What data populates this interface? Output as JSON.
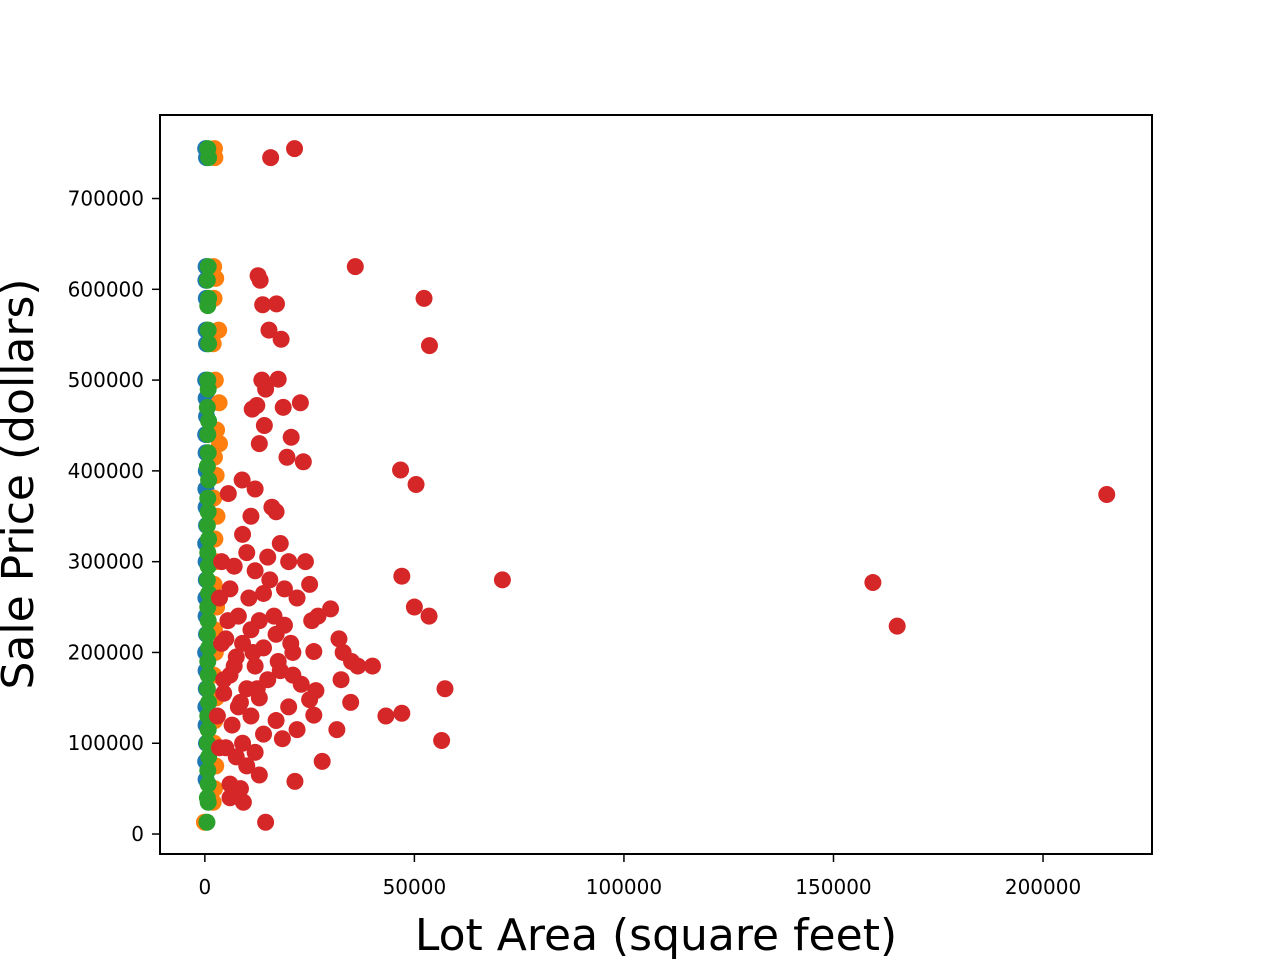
{
  "chart_data": {
    "type": "scatter",
    "title": "",
    "xlabel": "Lot Area (square feet)",
    "ylabel": "Sale Price (dollars)",
    "xlim": [
      -10700,
      226000
    ],
    "ylim": [
      -22000,
      792000
    ],
    "x_ticks": [
      0,
      50000,
      100000,
      150000,
      200000
    ],
    "y_ticks": [
      0,
      100000,
      200000,
      300000,
      400000,
      500000,
      600000,
      700000
    ],
    "grid": false,
    "legend": "none",
    "series": [
      {
        "color": "#1f77b4",
        "points": [
          [
            200,
            755000
          ],
          [
            400,
            745000
          ],
          [
            300,
            625000
          ],
          [
            250,
            610000
          ],
          [
            350,
            590000
          ],
          [
            300,
            555000
          ],
          [
            400,
            540000
          ],
          [
            200,
            500000
          ],
          [
            300,
            480000
          ],
          [
            400,
            460000
          ],
          [
            200,
            440000
          ],
          [
            300,
            420000
          ],
          [
            350,
            400000
          ],
          [
            250,
            380000
          ],
          [
            300,
            360000
          ],
          [
            400,
            340000
          ],
          [
            200,
            320000
          ],
          [
            300,
            300000
          ],
          [
            350,
            280000
          ],
          [
            250,
            260000
          ],
          [
            300,
            240000
          ],
          [
            400,
            220000
          ],
          [
            200,
            200000
          ],
          [
            300,
            180000
          ],
          [
            350,
            160000
          ],
          [
            250,
            140000
          ],
          [
            300,
            120000
          ],
          [
            400,
            100000
          ],
          [
            200,
            80000
          ],
          [
            300,
            60000
          ]
        ]
      },
      {
        "color": "#ff7f0e",
        "points": [
          [
            2300,
            755000
          ],
          [
            2400,
            745000
          ],
          [
            2100,
            625000
          ],
          [
            2600,
            612000
          ],
          [
            2200,
            590000
          ],
          [
            3300,
            555000
          ],
          [
            2000,
            540000
          ],
          [
            2500,
            500000
          ],
          [
            3400,
            475000
          ],
          [
            2800,
            445000
          ],
          [
            3500,
            430000
          ],
          [
            2300,
            415000
          ],
          [
            2700,
            395000
          ],
          [
            2100,
            370000
          ],
          [
            2900,
            350000
          ],
          [
            2400,
            325000
          ],
          [
            2600,
            300000
          ],
          [
            2200,
            275000
          ],
          [
            2800,
            250000
          ],
          [
            2300,
            225000
          ],
          [
            2500,
            200000
          ],
          [
            2100,
            175000
          ],
          [
            2700,
            150000
          ],
          [
            2400,
            125000
          ],
          [
            2200,
            100000
          ],
          [
            2600,
            75000
          ],
          [
            2300,
            50000
          ],
          [
            2000,
            35000
          ],
          [
            -100,
            13000
          ]
        ]
      },
      {
        "color": "#2ca02c",
        "points": [
          [
            700,
            755000
          ],
          [
            900,
            745000
          ],
          [
            800,
            625000
          ],
          [
            600,
            610000
          ],
          [
            900,
            590000
          ],
          [
            700,
            582000
          ],
          [
            800,
            555000
          ],
          [
            900,
            540000
          ],
          [
            700,
            500000
          ],
          [
            800,
            490000
          ],
          [
            600,
            470000
          ],
          [
            900,
            455000
          ],
          [
            700,
            440000
          ],
          [
            800,
            420000
          ],
          [
            600,
            405000
          ],
          [
            900,
            390000
          ],
          [
            700,
            370000
          ],
          [
            800,
            355000
          ],
          [
            600,
            340000
          ],
          [
            900,
            325000
          ],
          [
            700,
            310000
          ],
          [
            800,
            295000
          ],
          [
            600,
            280000
          ],
          [
            900,
            265000
          ],
          [
            700,
            250000
          ],
          [
            800,
            235000
          ],
          [
            600,
            220000
          ],
          [
            900,
            205000
          ],
          [
            700,
            190000
          ],
          [
            800,
            175000
          ],
          [
            600,
            160000
          ],
          [
            900,
            145000
          ],
          [
            700,
            130000
          ],
          [
            800,
            115000
          ],
          [
            600,
            100000
          ],
          [
            900,
            85000
          ],
          [
            700,
            70000
          ],
          [
            800,
            55000
          ],
          [
            600,
            40000
          ],
          [
            800,
            35000
          ],
          [
            500,
            13000
          ]
        ]
      },
      {
        "color": "#d62728",
        "points": [
          [
            15700,
            745000
          ],
          [
            21400,
            755000
          ],
          [
            35900,
            625000
          ],
          [
            12700,
            615000
          ],
          [
            13200,
            610000
          ],
          [
            52300,
            590000
          ],
          [
            13800,
            583000
          ],
          [
            17100,
            584000
          ],
          [
            15300,
            555000
          ],
          [
            18200,
            545000
          ],
          [
            53600,
            538000
          ],
          [
            13600,
            500000
          ],
          [
            17500,
            501000
          ],
          [
            14500,
            490000
          ],
          [
            22800,
            475000
          ],
          [
            18700,
            470000
          ],
          [
            11300,
            468000
          ],
          [
            12400,
            472000
          ],
          [
            14200,
            450000
          ],
          [
            20600,
            437000
          ],
          [
            13000,
            430000
          ],
          [
            19600,
            415000
          ],
          [
            23500,
            410000
          ],
          [
            46700,
            401000
          ],
          [
            50400,
            385000
          ],
          [
            215200,
            374000
          ],
          [
            5600,
            375000
          ],
          [
            8900,
            390000
          ],
          [
            12000,
            380000
          ],
          [
            16000,
            360000
          ],
          [
            11000,
            350000
          ],
          [
            17000,
            355000
          ],
          [
            9000,
            330000
          ],
          [
            18000,
            320000
          ],
          [
            10000,
            310000
          ],
          [
            15000,
            305000
          ],
          [
            20000,
            300000
          ],
          [
            24000,
            300000
          ],
          [
            7000,
            295000
          ],
          [
            12000,
            290000
          ],
          [
            47000,
            284000
          ],
          [
            71000,
            280000
          ],
          [
            159400,
            277000
          ],
          [
            25000,
            275000
          ],
          [
            6000,
            270000
          ],
          [
            14000,
            265000
          ],
          [
            22000,
            260000
          ],
          [
            30000,
            248000
          ],
          [
            27000,
            240000
          ],
          [
            25500,
            235000
          ],
          [
            50000,
            250000
          ],
          [
            53500,
            240000
          ],
          [
            8000,
            240000
          ],
          [
            13000,
            235000
          ],
          [
            19000,
            230000
          ],
          [
            165200,
            229000
          ],
          [
            11000,
            225000
          ],
          [
            17000,
            220000
          ],
          [
            5000,
            215000
          ],
          [
            32000,
            215000
          ],
          [
            9000,
            210000
          ],
          [
            33000,
            200000
          ],
          [
            26000,
            201000
          ],
          [
            14000,
            205000
          ],
          [
            21000,
            200000
          ],
          [
            7500,
            195000
          ],
          [
            35000,
            190000
          ],
          [
            40000,
            185000
          ],
          [
            12000,
            185000
          ],
          [
            18000,
            180000
          ],
          [
            36500,
            185000
          ],
          [
            6000,
            175000
          ],
          [
            32500,
            170000
          ],
          [
            15000,
            170000
          ],
          [
            23000,
            165000
          ],
          [
            10000,
            160000
          ],
          [
            57300,
            160000
          ],
          [
            26500,
            158000
          ],
          [
            4500,
            155000
          ],
          [
            13000,
            150000
          ],
          [
            25000,
            148000
          ],
          [
            34800,
            145000
          ],
          [
            8000,
            140000
          ],
          [
            20000,
            140000
          ],
          [
            47000,
            133000
          ],
          [
            43200,
            130000
          ],
          [
            26000,
            131000
          ],
          [
            11000,
            130000
          ],
          [
            17000,
            125000
          ],
          [
            6500,
            120000
          ],
          [
            22000,
            115000
          ],
          [
            31500,
            115000
          ],
          [
            14000,
            110000
          ],
          [
            18500,
            105000
          ],
          [
            56500,
            103000
          ],
          [
            9000,
            100000
          ],
          [
            5000,
            95000
          ],
          [
            12000,
            90000
          ],
          [
            7500,
            85000
          ],
          [
            28000,
            80000
          ],
          [
            10000,
            75000
          ],
          [
            13000,
            65000
          ],
          [
            21500,
            58000
          ],
          [
            6000,
            55000
          ],
          [
            8500,
            50000
          ],
          [
            6000,
            40000
          ],
          [
            9200,
            35000
          ],
          [
            14500,
            13000
          ],
          [
            3500,
            260000
          ],
          [
            4000,
            210000
          ],
          [
            4500,
            170000
          ],
          [
            3000,
            130000
          ],
          [
            3500,
            95000
          ],
          [
            4000,
            300000
          ],
          [
            5500,
            235000
          ],
          [
            7000,
            185000
          ],
          [
            8500,
            145000
          ],
          [
            10500,
            260000
          ],
          [
            11500,
            200000
          ],
          [
            12500,
            160000
          ],
          [
            15500,
            280000
          ],
          [
            16500,
            240000
          ],
          [
            17500,
            190000
          ],
          [
            19000,
            270000
          ],
          [
            20500,
            210000
          ],
          [
            21000,
            175000
          ]
        ]
      }
    ]
  }
}
